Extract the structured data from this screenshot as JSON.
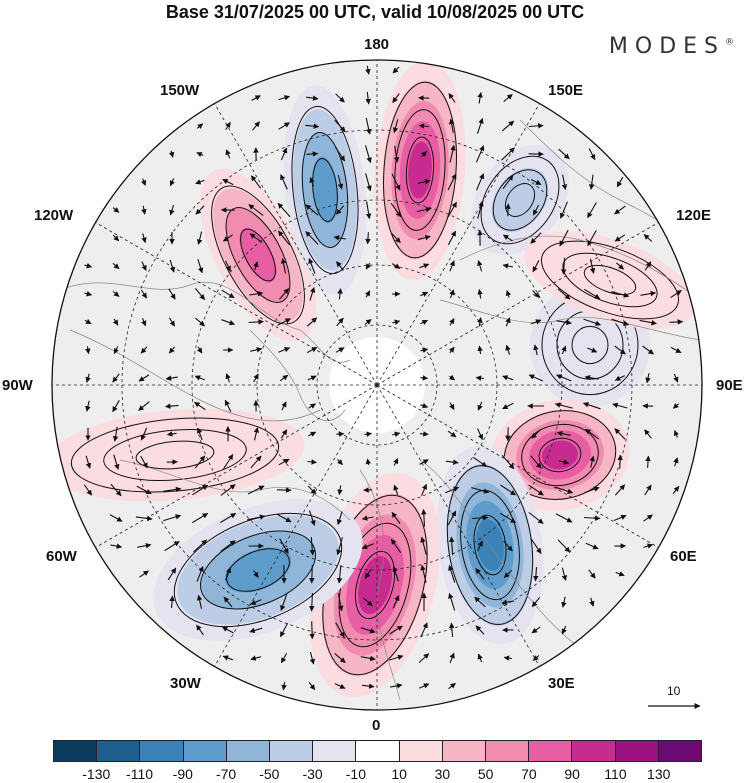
{
  "title": "Base 31/07/2025 00 UTC, valid 10/08/2025 00 UTC",
  "logo": "MODES",
  "longitude_labels": {
    "lon_180": "180",
    "lon_150w": "150W",
    "lon_150e": "150E",
    "lon_120w": "120W",
    "lon_120e": "120E",
    "lon_90w": "90W",
    "lon_90e": "90E",
    "lon_60w": "60W",
    "lon_60e": "60E",
    "lon_30w": "30W",
    "lon_30e": "30E",
    "lon_0": "0"
  },
  "reference_vector": {
    "label": "10"
  },
  "colorbar": {
    "colors": [
      "#0d3d5e",
      "#1f5f8e",
      "#3b82b9",
      "#5e9ccb",
      "#8fb5d8",
      "#bccde5",
      "#e4e3ef",
      "#ffffff",
      "#fbdce0",
      "#f6b6c5",
      "#f18bb0",
      "#e75ea4",
      "#c82b8f",
      "#9b117f",
      "#6a0a72"
    ],
    "tick_labels": [
      "-130",
      "-110",
      "-90",
      "-70",
      "-50",
      "-30",
      "-10",
      "10",
      "30",
      "50",
      "70",
      "90",
      "110",
      "130"
    ]
  },
  "anomaly_cells": [
    {
      "name": "high-cell-155w",
      "sign": "positive",
      "peak": 90
    },
    {
      "name": "low-cell-170w",
      "sign": "negative",
      "peak": -90
    },
    {
      "name": "high-cell-170e",
      "sign": "positive",
      "peak": 110
    },
    {
      "name": "low-cell-140e",
      "sign": "negative",
      "peak": -50
    },
    {
      "name": "low-cell-100e",
      "sign": "negative",
      "peak": -30
    },
    {
      "name": "high-cell-70e",
      "sign": "positive",
      "peak": 110
    },
    {
      "name": "low-cell-35e",
      "sign": "negative",
      "peak": -110
    },
    {
      "name": "high-cell-10w",
      "sign": "positive",
      "peak": 110
    },
    {
      "name": "low-cell-50w",
      "sign": "negative",
      "peak": -90
    },
    {
      "name": "high-cell-75w",
      "sign": "positive",
      "peak": 30
    },
    {
      "name": "high-cell-110e",
      "sign": "positive",
      "peak": 30
    }
  ]
}
